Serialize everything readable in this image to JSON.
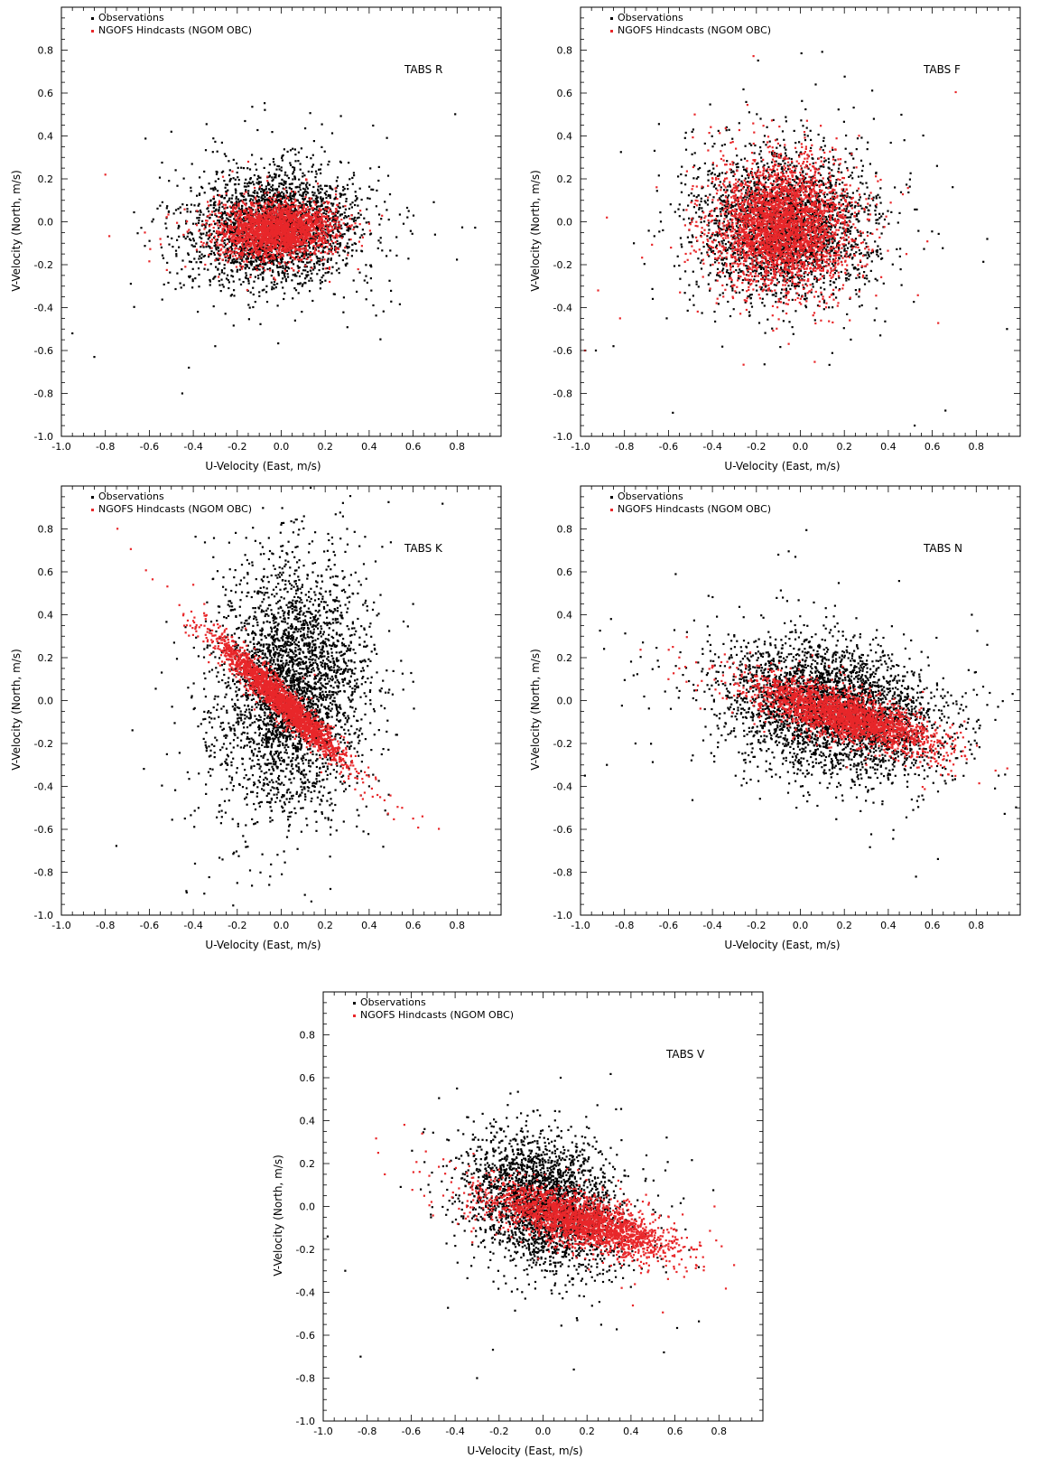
{
  "colors": {
    "observations": "#000000",
    "hindcasts": "#e8272a",
    "frame": "#000000"
  },
  "chart_data": [
    {
      "type": "scatter",
      "station_label": "TABS R",
      "xlabel": "U-Velocity (East, m/s)",
      "ylabel": "V-Velocity (North, m/s)",
      "xlim": [
        -1.0,
        1.0
      ],
      "ylim": [
        -1.0,
        1.0
      ],
      "xticks": [
        "-1.0",
        "-0.8",
        "-0.6",
        "-0.4",
        "-0.2",
        "0.0",
        "0.2",
        "0.4",
        "0.6",
        "0.8"
      ],
      "yticks": [
        "-1.0",
        "-0.8",
        "-0.6",
        "-0.4",
        "-0.2",
        "0.0",
        "0.2",
        "0.4",
        "0.6",
        "0.8"
      ],
      "legend_position": "top-left",
      "series": [
        {
          "name": "Observations",
          "color": "#000000",
          "n": 2600,
          "center": [
            -0.03,
            -0.03
          ],
          "spread": [
            0.19,
            0.13
          ],
          "corr": 0.05,
          "outliers": [
            [
              -0.45,
              -0.8
            ],
            [
              -0.42,
              -0.68
            ],
            [
              0.7,
              -0.06
            ],
            [
              -0.5,
              0.42
            ],
            [
              -0.85,
              -0.63
            ],
            [
              -0.95,
              -0.52
            ],
            [
              0.58,
              0.05
            ],
            [
              -0.3,
              -0.58
            ]
          ]
        },
        {
          "name": "NGOFS Hindcasts (NGOM OBC)",
          "color": "#e8272a",
          "n": 2400,
          "center": [
            -0.02,
            -0.04
          ],
          "spread": [
            0.12,
            0.06
          ],
          "corr": 0.1,
          "outliers": [
            [
              -0.62,
              -0.05
            ],
            [
              -0.55,
              -0.08
            ],
            [
              0.22,
              -0.28
            ],
            [
              -0.15,
              0.28
            ],
            [
              -0.8,
              0.22
            ]
          ]
        }
      ]
    },
    {
      "type": "scatter",
      "station_label": "TABS F",
      "xlabel": "U-Velocity (East, m/s)",
      "ylabel": "V-Velocity (North, m/s)",
      "xlim": [
        -1.0,
        1.0
      ],
      "ylim": [
        -1.0,
        1.0
      ],
      "xticks": [
        "-1.0",
        "-0.8",
        "-0.6",
        "-0.4",
        "-0.2",
        "0.0",
        "0.2",
        "0.4",
        "0.6",
        "0.8"
      ],
      "yticks": [
        "-1.0",
        "-0.8",
        "-0.6",
        "-0.4",
        "-0.2",
        "0.0",
        "0.2",
        "0.4",
        "0.6",
        "0.8"
      ],
      "legend_position": "top-left",
      "series": [
        {
          "name": "Observations",
          "color": "#000000",
          "n": 2600,
          "center": [
            -0.07,
            -0.02
          ],
          "spread": [
            0.2,
            0.17
          ],
          "corr": 0.0,
          "outliers": [
            [
              0.07,
              0.64
            ],
            [
              0.52,
              -0.95
            ],
            [
              0.66,
              -0.88
            ],
            [
              -0.58,
              -0.89
            ],
            [
              0.94,
              -0.5
            ],
            [
              0.85,
              -0.08
            ],
            [
              -0.93,
              -0.6
            ],
            [
              -0.85,
              -0.58
            ]
          ]
        },
        {
          "name": "NGOFS Hindcasts (NGOM OBC)",
          "color": "#e8272a",
          "n": 3200,
          "center": [
            -0.08,
            -0.02
          ],
          "spread": [
            0.15,
            0.14
          ],
          "corr": 0.0,
          "outliers": [
            [
              -0.98,
              -0.6
            ],
            [
              -0.92,
              -0.32
            ],
            [
              -0.82,
              -0.45
            ],
            [
              -0.88,
              0.02
            ]
          ]
        }
      ]
    },
    {
      "type": "scatter",
      "station_label": "TABS K",
      "xlabel": "U-Velocity (East, m/s)",
      "ylabel": "V-Velocity (North, m/s)",
      "xlim": [
        -1.0,
        1.0
      ],
      "ylim": [
        -1.0,
        1.0
      ],
      "xticks": [
        "-1.0",
        "-0.8",
        "-0.6",
        "-0.4",
        "-0.2",
        "0.0",
        "0.2",
        "0.4",
        "0.6",
        "0.8"
      ],
      "yticks": [
        "-1.0",
        "-0.8",
        "-0.6",
        "-0.4",
        "-0.2",
        "0.0",
        "0.2",
        "0.4",
        "0.6",
        "0.8"
      ],
      "legend_position": "top-left",
      "series": [
        {
          "name": "Observations",
          "color": "#000000",
          "n": 3200,
          "center": [
            0.05,
            0.05
          ],
          "spread": [
            0.16,
            0.28
          ],
          "corr": 0.1,
          "outliers": [
            [
              -0.35,
              -0.9
            ],
            [
              -0.2,
              -0.85
            ],
            [
              0.0,
              0.82
            ],
            [
              0.6,
              0.45
            ],
            [
              -0.52,
              -0.25
            ],
            [
              -0.05,
              -0.82
            ],
            [
              0.3,
              0.8
            ]
          ]
        },
        {
          "name": "NGOFS Hindcasts (NGOM OBC)",
          "color": "#e8272a",
          "n": 2200,
          "center": [
            0.0,
            0.0
          ],
          "spread": [
            0.14,
            0.14
          ],
          "corr": -0.96,
          "outliers": [
            [
              -0.4,
              0.54
            ],
            [
              0.6,
              -0.55
            ],
            [
              0.55,
              -0.5
            ],
            [
              -0.35,
              0.45
            ],
            [
              0.45,
              -0.45
            ]
          ]
        }
      ]
    },
    {
      "type": "scatter",
      "station_label": "TABS N",
      "xlabel": "U-Velocity (East, m/s)",
      "ylabel": "V-Velocity (North, m/s)",
      "xlim": [
        -1.0,
        1.0
      ],
      "ylim": [
        -1.0,
        1.0
      ],
      "xticks": [
        "-1.0",
        "-0.8",
        "-0.6",
        "-0.4",
        "-0.2",
        "0.0",
        "0.2",
        "0.4",
        "0.6",
        "0.8"
      ],
      "yticks": [
        "-1.0",
        "-0.8",
        "-0.6",
        "-0.4",
        "-0.2",
        "0.0",
        "0.2",
        "0.4",
        "0.6",
        "0.8"
      ],
      "legend_position": "top-left",
      "series": [
        {
          "name": "Observations",
          "color": "#000000",
          "n": 3400,
          "center": [
            0.15,
            -0.04
          ],
          "spread": [
            0.24,
            0.15
          ],
          "corr": -0.3,
          "outliers": [
            [
              -0.1,
              0.68
            ],
            [
              -0.98,
              -0.35
            ],
            [
              -0.88,
              -0.3
            ],
            [
              0.85,
              0.26
            ],
            [
              0.78,
              0.4
            ],
            [
              -0.75,
              -0.2
            ],
            [
              0.85,
              -0.02
            ]
          ]
        },
        {
          "name": "NGOFS Hindcasts (NGOM OBC)",
          "color": "#e8272a",
          "n": 2600,
          "center": [
            0.2,
            -0.07
          ],
          "spread": [
            0.2,
            0.08
          ],
          "corr": -0.75,
          "outliers": [
            [
              -0.58,
              0.25
            ],
            [
              -0.6,
              0.1
            ],
            [
              0.7,
              -0.24
            ],
            [
              0.68,
              -0.28
            ]
          ]
        }
      ]
    },
    {
      "type": "scatter",
      "station_label": "TABS V",
      "xlabel": "U-Velocity (East, m/s)",
      "ylabel": "V-Velocity (North, m/s)",
      "xlim": [
        -1.0,
        1.0
      ],
      "ylim": [
        -1.0,
        1.0
      ],
      "xticks": [
        "-1.0",
        "-0.8",
        "-0.6",
        "-0.4",
        "-0.2",
        "0.0",
        "0.2",
        "0.4",
        "0.6",
        "0.8"
      ],
      "yticks": [
        "-1.0",
        "-0.8",
        "-0.6",
        "-0.4",
        "-0.2",
        "0.0",
        "0.2",
        "0.4",
        "0.6",
        "0.8"
      ],
      "legend_position": "top-left",
      "series": [
        {
          "name": "Observations",
          "color": "#000000",
          "n": 2600,
          "center": [
            0.0,
            0.02
          ],
          "spread": [
            0.17,
            0.15
          ],
          "corr": -0.25,
          "outliers": [
            [
              -0.3,
              -0.8
            ],
            [
              0.14,
              -0.76
            ],
            [
              0.55,
              -0.68
            ],
            [
              -0.83,
              -0.7
            ],
            [
              -0.98,
              -0.14
            ],
            [
              0.08,
              0.6
            ],
            [
              -0.9,
              -0.3
            ]
          ]
        },
        {
          "name": "NGOFS Hindcasts (NGOM OBC)",
          "color": "#e8272a",
          "n": 2400,
          "center": [
            0.17,
            -0.07
          ],
          "spread": [
            0.2,
            0.08
          ],
          "corr": -0.7,
          "outliers": [
            [
              -0.75,
              0.25
            ],
            [
              -0.72,
              0.15
            ],
            [
              0.78,
              0.0
            ],
            [
              0.7,
              -0.2
            ],
            [
              -0.55,
              0.34
            ]
          ]
        }
      ]
    }
  ]
}
